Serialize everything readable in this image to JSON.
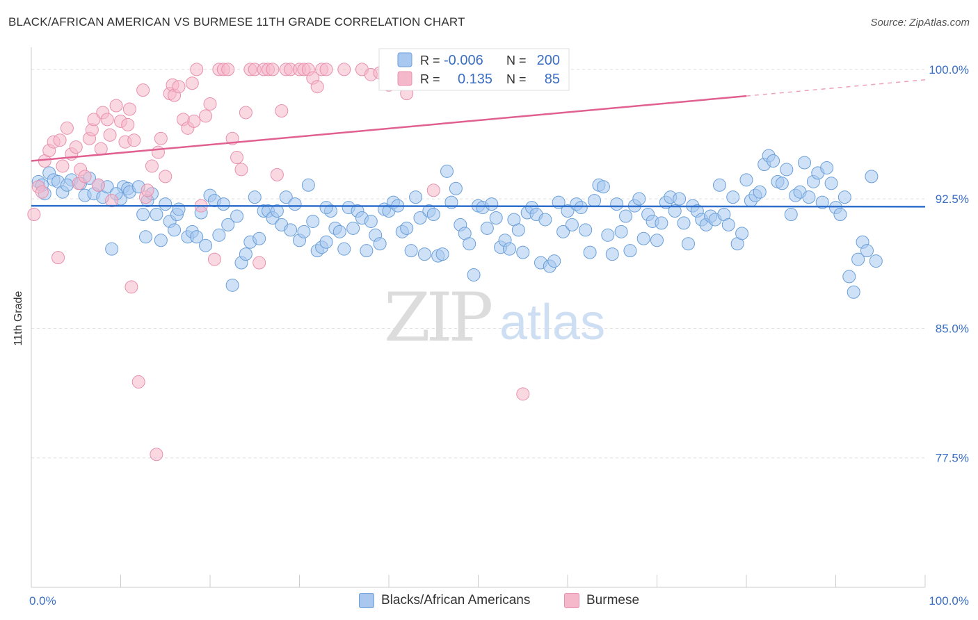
{
  "header": {
    "title": "BLACK/AFRICAN AMERICAN VS BURMESE 11TH GRADE CORRELATION CHART",
    "source": "Source: ZipAtlas.com"
  },
  "watermark": {
    "zip": "ZIP",
    "atlas": "atlas"
  },
  "colors": {
    "blue_fill": "#a8c8f0",
    "blue_stroke": "#6a9fd8",
    "blue_line": "#2f6fcc",
    "pink_fill": "#f5b8cb",
    "pink_stroke": "#e890ae",
    "pink_line": "#e06090",
    "tick_label": "#3a6fc4",
    "grid": "#dddddd"
  },
  "legend_top": {
    "rows": [
      {
        "r_label": "R = ",
        "r_value": "-0.006",
        "n_label": "N = ",
        "n_value": "200"
      },
      {
        "r_label": "R = ",
        "r_value": "0.135",
        "n_label": "N = ",
        "n_value": "85"
      }
    ]
  },
  "legend_bottom": [
    "Blacks/African Americans",
    "Burmese"
  ],
  "chart_data": {
    "type": "scatter",
    "ylabel": "11th Grade",
    "xlabel": "",
    "xlim": [
      0,
      100
    ],
    "ylim": [
      70,
      100.8
    ],
    "x_tick_labels": [
      "0.0%",
      "100.0%"
    ],
    "y_ticks": [
      77.5,
      85.0,
      92.5,
      100.0
    ],
    "y_tick_labels": [
      "77.5%",
      "85.0%",
      "92.5%",
      "100.0%"
    ],
    "grid": true,
    "series": [
      {
        "name": "Blacks/African Americans",
        "r": -0.006,
        "n": 200,
        "trend": {
          "x": [
            0,
            100
          ],
          "y": [
            92.1,
            92.05
          ],
          "dashed_from": null
        },
        "points": [
          [
            0.8,
            93.5
          ],
          [
            1.2,
            93.3
          ],
          [
            2,
            94.0
          ],
          [
            2.5,
            93.6
          ],
          [
            3,
            93.5
          ],
          [
            3.5,
            92.9
          ],
          [
            4.5,
            93.6
          ],
          [
            5.5,
            93.4
          ],
          [
            6,
            92.7
          ],
          [
            6.5,
            93.7
          ],
          [
            7,
            92.8
          ],
          [
            7.5,
            93.3
          ],
          [
            8,
            92.6
          ],
          [
            8.5,
            93.2
          ],
          [
            9,
            89.6
          ],
          [
            10,
            92.5
          ],
          [
            10.3,
            93.2
          ],
          [
            10.8,
            93.1
          ],
          [
            11,
            92.9
          ],
          [
            12,
            93.2
          ],
          [
            12.5,
            91.6
          ],
          [
            12.8,
            90.3
          ],
          [
            13,
            92.4
          ],
          [
            13.5,
            92.8
          ],
          [
            14,
            91.6
          ],
          [
            14.5,
            90.1
          ],
          [
            15,
            92.2
          ],
          [
            15.5,
            91.2
          ],
          [
            16,
            90.7
          ],
          [
            16.3,
            91.6
          ],
          [
            16.5,
            91.9
          ],
          [
            17.5,
            90.3
          ],
          [
            18,
            90.6
          ],
          [
            18.5,
            90.3
          ],
          [
            19,
            91.7
          ],
          [
            19.5,
            89.8
          ],
          [
            20,
            92.7
          ],
          [
            20.5,
            92.4
          ],
          [
            21,
            90.4
          ],
          [
            21.5,
            92.2
          ],
          [
            22,
            91.0
          ],
          [
            22.5,
            87.5
          ],
          [
            23,
            91.5
          ],
          [
            23.5,
            88.8
          ],
          [
            24,
            89.3
          ],
          [
            24.5,
            90.0
          ],
          [
            25,
            92.6
          ],
          [
            25.5,
            90.2
          ],
          [
            26,
            91.8
          ],
          [
            26.5,
            91.8
          ],
          [
            27,
            91.4
          ],
          [
            27.5,
            91.8
          ],
          [
            28,
            91.0
          ],
          [
            28.5,
            92.6
          ],
          [
            29,
            90.7
          ],
          [
            29.5,
            92.2
          ],
          [
            30,
            90.1
          ],
          [
            30.5,
            90.6
          ],
          [
            31,
            93.3
          ],
          [
            31.5,
            91.2
          ],
          [
            32,
            89.5
          ],
          [
            32.5,
            89.7
          ],
          [
            33,
            90.0
          ],
          [
            33.5,
            91.8
          ],
          [
            34,
            90.8
          ],
          [
            34.5,
            90.6
          ],
          [
            35,
            89.6
          ],
          [
            35.5,
            92.0
          ],
          [
            36,
            90.8
          ],
          [
            36.5,
            91.8
          ],
          [
            37,
            91.4
          ],
          [
            37.5,
            89.5
          ],
          [
            38,
            91.2
          ],
          [
            38.5,
            90.4
          ],
          [
            39,
            89.9
          ],
          [
            39.5,
            91.9
          ],
          [
            40,
            91.8
          ],
          [
            40.5,
            92.3
          ],
          [
            41,
            92.1
          ],
          [
            41.5,
            90.6
          ],
          [
            42,
            90.8
          ],
          [
            42.5,
            89.5
          ],
          [
            43,
            92.6
          ],
          [
            43.5,
            91.4
          ],
          [
            44,
            89.3
          ],
          [
            44.5,
            91.8
          ],
          [
            45,
            91.6
          ],
          [
            45.5,
            89.2
          ],
          [
            46,
            89.3
          ],
          [
            46.5,
            94.1
          ],
          [
            47,
            92.3
          ],
          [
            47.5,
            93.1
          ],
          [
            48,
            91.0
          ],
          [
            48.5,
            90.5
          ],
          [
            49,
            89.9
          ],
          [
            49.5,
            88.1
          ],
          [
            50,
            92.1
          ],
          [
            50.5,
            92.0
          ],
          [
            51,
            90.8
          ],
          [
            51.5,
            92.2
          ],
          [
            52,
            91.4
          ],
          [
            52.5,
            89.7
          ],
          [
            53,
            90.1
          ],
          [
            53.5,
            89.6
          ],
          [
            54,
            91.3
          ],
          [
            54.5,
            90.7
          ],
          [
            55,
            89.4
          ],
          [
            55.5,
            91.7
          ],
          [
            56,
            92.0
          ],
          [
            56.5,
            91.6
          ],
          [
            57,
            88.8
          ],
          [
            57.5,
            91.3
          ],
          [
            58,
            88.6
          ],
          [
            58.5,
            88.9
          ],
          [
            59,
            92.3
          ],
          [
            59.5,
            90.6
          ],
          [
            60,
            91.8
          ],
          [
            60.5,
            91.0
          ],
          [
            61,
            92.2
          ],
          [
            61.5,
            92.0
          ],
          [
            62,
            90.7
          ],
          [
            62.5,
            89.4
          ],
          [
            63,
            92.4
          ],
          [
            63.5,
            93.3
          ],
          [
            64,
            93.2
          ],
          [
            64.5,
            90.4
          ],
          [
            65,
            89.3
          ],
          [
            65.5,
            92.2
          ],
          [
            66,
            90.6
          ],
          [
            66.5,
            91.5
          ],
          [
            67,
            89.5
          ],
          [
            67.5,
            92.1
          ],
          [
            68,
            92.5
          ],
          [
            68.5,
            90.2
          ],
          [
            69,
            91.6
          ],
          [
            69.5,
            91.2
          ],
          [
            70,
            90.1
          ],
          [
            70.5,
            91.1
          ],
          [
            71,
            92.3
          ],
          [
            71.5,
            92.6
          ],
          [
            72,
            91.8
          ],
          [
            72.5,
            92.5
          ],
          [
            73,
            91.1
          ],
          [
            73.5,
            89.9
          ],
          [
            74,
            92.1
          ],
          [
            74.5,
            91.8
          ],
          [
            75,
            91.3
          ],
          [
            75.5,
            91.0
          ],
          [
            76,
            91.5
          ],
          [
            76.5,
            91.3
          ],
          [
            77,
            93.3
          ],
          [
            77.5,
            91.6
          ],
          [
            78,
            91.0
          ],
          [
            78.5,
            92.6
          ],
          [
            79,
            89.9
          ],
          [
            79.5,
            90.5
          ],
          [
            80,
            93.6
          ],
          [
            80.5,
            92.4
          ],
          [
            81,
            92.7
          ],
          [
            81.5,
            92.9
          ],
          [
            82,
            94.5
          ],
          [
            82.5,
            95.0
          ],
          [
            83,
            94.7
          ],
          [
            83.5,
            93.5
          ],
          [
            84,
            93.4
          ],
          [
            84.5,
            94.2
          ],
          [
            85,
            91.6
          ],
          [
            85.5,
            92.7
          ],
          [
            86,
            92.9
          ],
          [
            86.5,
            94.6
          ],
          [
            87,
            92.6
          ],
          [
            87.5,
            93.5
          ],
          [
            88,
            94.0
          ],
          [
            88.5,
            92.3
          ],
          [
            89,
            94.3
          ],
          [
            89.5,
            93.4
          ],
          [
            90,
            92.0
          ],
          [
            90.5,
            91.6
          ],
          [
            91,
            92.6
          ],
          [
            91.5,
            88.0
          ],
          [
            92,
            87.1
          ],
          [
            92.5,
            89.0
          ],
          [
            93,
            90.0
          ],
          [
            93.5,
            89.5
          ],
          [
            94,
            93.8
          ],
          [
            94.5,
            88.9
          ],
          [
            1.5,
            92.8
          ],
          [
            4,
            93.3
          ],
          [
            9.5,
            92.8
          ],
          [
            33,
            92.0
          ]
        ]
      },
      {
        "name": "Burmese",
        "r": 0.135,
        "n": 85,
        "trend": {
          "x": [
            0,
            100
          ],
          "y": [
            94.7,
            99.4
          ],
          "dashed_from": 80
        },
        "points": [
          [
            0.3,
            91.6
          ],
          [
            0.8,
            93.2
          ],
          [
            1.2,
            92.9
          ],
          [
            1.5,
            94.7
          ],
          [
            2,
            95.3
          ],
          [
            2.5,
            95.8
          ],
          [
            3,
            89.1
          ],
          [
            3.2,
            95.9
          ],
          [
            3.5,
            94.4
          ],
          [
            4,
            96.6
          ],
          [
            4.5,
            95.1
          ],
          [
            5,
            95.5
          ],
          [
            5.3,
            93.4
          ],
          [
            5.5,
            94.2
          ],
          [
            6,
            93.8
          ],
          [
            6.5,
            96.0
          ],
          [
            6.8,
            96.5
          ],
          [
            7,
            97.1
          ],
          [
            7.5,
            93.3
          ],
          [
            7.8,
            95.4
          ],
          [
            8,
            97.5
          ],
          [
            8.5,
            97.1
          ],
          [
            8.8,
            96.2
          ],
          [
            9,
            92.4
          ],
          [
            9.5,
            97.9
          ],
          [
            10,
            97.0
          ],
          [
            10.5,
            95.8
          ],
          [
            10.8,
            96.8
          ],
          [
            11,
            97.7
          ],
          [
            11.2,
            87.4
          ],
          [
            11.5,
            95.9
          ],
          [
            12,
            81.9
          ],
          [
            12.5,
            98.8
          ],
          [
            12.8,
            92.6
          ],
          [
            13,
            93.0
          ],
          [
            13.5,
            94.4
          ],
          [
            14,
            77.7
          ],
          [
            14.2,
            95.2
          ],
          [
            14.5,
            96.0
          ],
          [
            15,
            93.8
          ],
          [
            15.5,
            98.6
          ],
          [
            15.8,
            99.1
          ],
          [
            16,
            98.5
          ],
          [
            16.5,
            99.0
          ],
          [
            17,
            97.1
          ],
          [
            17.5,
            96.6
          ],
          [
            18,
            99.2
          ],
          [
            18.2,
            97.0
          ],
          [
            18.5,
            100.0
          ],
          [
            19,
            92.1
          ],
          [
            19.5,
            97.3
          ],
          [
            20,
            98.0
          ],
          [
            20.5,
            89.0
          ],
          [
            21,
            100.0
          ],
          [
            21.5,
            100.0
          ],
          [
            22,
            100.0
          ],
          [
            22.5,
            96.0
          ],
          [
            23,
            94.9
          ],
          [
            23.5,
            94.2
          ],
          [
            24,
            97.5
          ],
          [
            24.5,
            100.0
          ],
          [
            25,
            100.0
          ],
          [
            25.5,
            88.8
          ],
          [
            26,
            100.0
          ],
          [
            26.5,
            100.0
          ],
          [
            27,
            100.0
          ],
          [
            27.5,
            93.9
          ],
          [
            28,
            97.6
          ],
          [
            28.5,
            100.0
          ],
          [
            29,
            100.0
          ],
          [
            30,
            100.0
          ],
          [
            30.5,
            100.0
          ],
          [
            31,
            100.0
          ],
          [
            31.5,
            99.5
          ],
          [
            32,
            99.0
          ],
          [
            32.5,
            100.0
          ],
          [
            33,
            100.0
          ],
          [
            35,
            100.0
          ],
          [
            37,
            100.0
          ],
          [
            38,
            99.7
          ],
          [
            39,
            99.8
          ],
          [
            40,
            99.1
          ],
          [
            42,
            98.6
          ],
          [
            45,
            93.0
          ],
          [
            55,
            81.2
          ]
        ]
      }
    ]
  }
}
